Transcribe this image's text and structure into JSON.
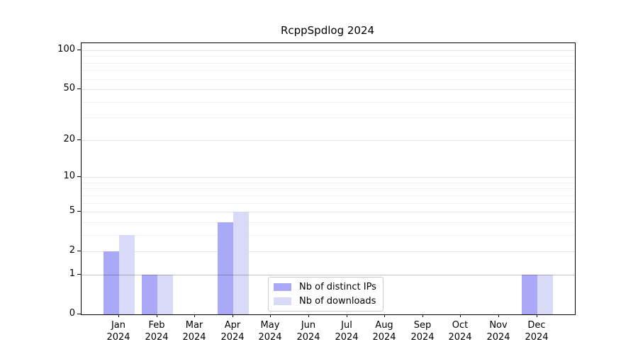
{
  "chart_data": {
    "type": "bar",
    "title": "RcppSpdlog 2024",
    "scale": "log1p",
    "ylim": [
      0,
      100
    ],
    "grid": true,
    "legend_position": "inside-bottom-center",
    "categories": [
      "Jan",
      "Feb",
      "Mar",
      "Apr",
      "May",
      "Jun",
      "Jul",
      "Aug",
      "Sep",
      "Oct",
      "Nov",
      "Dec"
    ],
    "x_year_line": "2024",
    "y_ticks": [
      0,
      1,
      2,
      5,
      10,
      20,
      50,
      100
    ],
    "y_tick_labels": [
      "0",
      "1",
      "2",
      "5",
      "10",
      "20",
      "50",
      "100"
    ],
    "grid_values": [
      1,
      2,
      3,
      4,
      5,
      6,
      7,
      8,
      9,
      10,
      20,
      30,
      40,
      50,
      60,
      70,
      80,
      90,
      100
    ],
    "major_grid_values": [
      2,
      5,
      10,
      20,
      50,
      100
    ],
    "series": [
      {
        "name": "Nb of distinct IPs",
        "color": "#a9a9f7",
        "values": [
          2,
          1,
          0,
          4,
          0,
          0,
          0,
          0,
          0,
          0,
          0,
          1
        ]
      },
      {
        "name": "Nb of downloads",
        "color": "#d9d9f8",
        "values": [
          3,
          1,
          0,
          5,
          0,
          0,
          0,
          0,
          0,
          0,
          0,
          1
        ]
      }
    ],
    "colors": {
      "grid_minor": "#f1f1f3",
      "grid_major": "#e4e4e6",
      "unit_line": "rgba(0,0,0,0.24)",
      "axis": "#000000",
      "background": "#ffffff"
    }
  }
}
